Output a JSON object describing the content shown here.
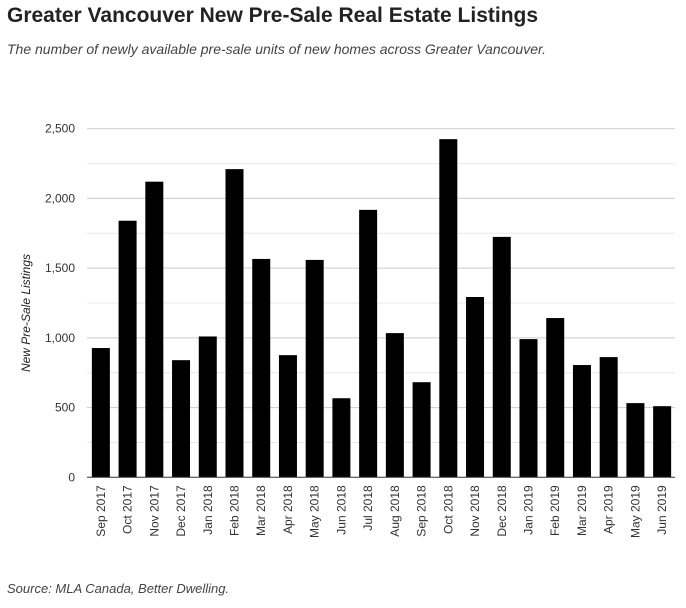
{
  "chart_data": {
    "type": "bar",
    "title": "Greater Vancouver New Pre-Sale Real Estate Listings",
    "subtitle": "The number of newly available pre-sale units of new homes across Greater Vancouver.",
    "xlabel": "",
    "ylabel": "New Pre-Sale Listings",
    "ylim": [
      0,
      2500
    ],
    "yticks": [
      0,
      500,
      1000,
      1500,
      2000,
      2500
    ],
    "ytick_labels": [
      "0",
      "500",
      "1,000",
      "1,500",
      "2,000",
      "2,500"
    ],
    "grid": true,
    "categories": [
      "Sep 2017",
      "Oct 2017",
      "Nov 2017",
      "Dec 2017",
      "Jan 2018",
      "Feb 2018",
      "Mar 2018",
      "Apr 2018",
      "May 2018",
      "Jun 2018",
      "Jul 2018",
      "Aug 2018",
      "Sep 2018",
      "Oct 2018",
      "Nov 2018",
      "Dec 2018",
      "Jan 2019",
      "Feb 2019",
      "Mar 2019",
      "Apr 2019",
      "May 2019",
      "Jun 2019"
    ],
    "values": [
      927,
      1840,
      2120,
      840,
      1010,
      2210,
      1566,
      876,
      1559,
      567,
      1918,
      1034,
      682,
      2425,
      1293,
      1724,
      991,
      1142,
      805,
      862,
      532,
      510
    ],
    "bar_color": "#000000",
    "source": "Source: MLA Canada, Better Dwelling."
  }
}
